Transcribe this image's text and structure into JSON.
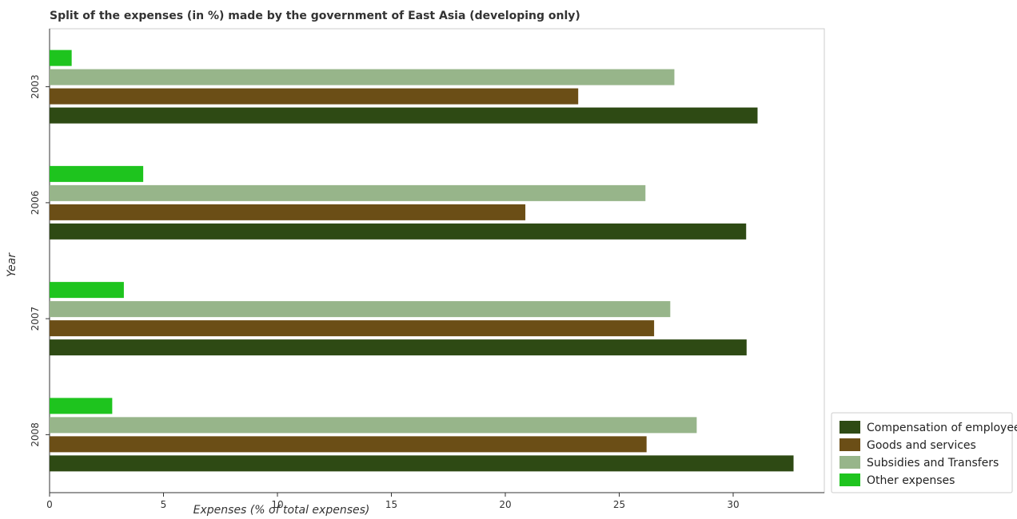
{
  "chart_data": {
    "type": "bar",
    "orientation": "horizontal",
    "title": "Split of the expenses (in %) made by the government of East Asia (developing only)",
    "xlabel": "Expenses (% of total expenses)",
    "ylabel": "Year",
    "categories": [
      "2003",
      "2006",
      "2007",
      "2008"
    ],
    "xlim": [
      0,
      34
    ],
    "xticks": [
      0,
      5,
      10,
      15,
      20,
      25,
      30
    ],
    "grid": false,
    "legend_position": "bottom-right",
    "series": [
      {
        "name": "Compensation of employees",
        "color": "#2e4a14",
        "values": [
          31.07,
          30.57,
          30.59,
          32.65
        ]
      },
      {
        "name": "Goods and services",
        "color": "#6b4e16",
        "values": [
          23.2,
          20.88,
          26.53,
          26.2
        ]
      },
      {
        "name": "Subsidies and Transfers",
        "color": "#97b58a",
        "values": [
          27.42,
          26.15,
          27.24,
          28.4
        ]
      },
      {
        "name": "Other expenses",
        "color": "#1ec41e",
        "values": [
          0.97,
          4.11,
          3.26,
          2.75
        ]
      }
    ]
  }
}
